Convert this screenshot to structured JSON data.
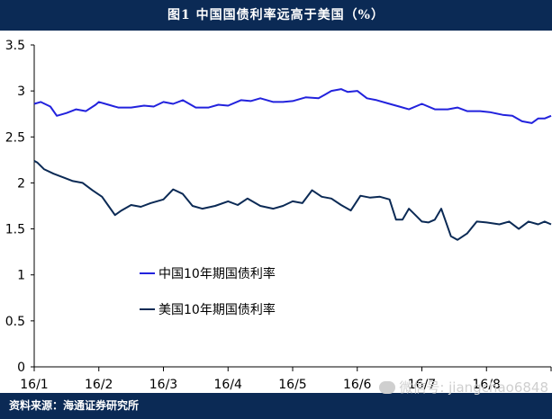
{
  "header": {
    "title": "图1   中国国债利率远高于美国（%）"
  },
  "footer": {
    "source": "资料来源：海通证券研究所"
  },
  "watermark": {
    "text": "微信号: jiangchao6848"
  },
  "colors": {
    "china": "#2222dd",
    "us": "#0b2a55",
    "axis": "#000000",
    "header_bg": "#0b2a55"
  },
  "chart_data": {
    "type": "line",
    "ylim": [
      0,
      3.5
    ],
    "y_ticks": [
      "0",
      "0.5",
      "1",
      "1.5",
      "2",
      "2.5",
      "3",
      "3.5"
    ],
    "x_ticks": [
      "16/1",
      "16/2",
      "16/3",
      "16/4",
      "16/5",
      "16/6",
      "16/7",
      "16/8"
    ],
    "legend_placement": "center-left",
    "series": [
      {
        "name": "中国10年期国债利率",
        "x": [
          0,
          0.1,
          0.25,
          0.35,
          0.5,
          0.65,
          0.8,
          0.95,
          1.0,
          1.15,
          1.3,
          1.5,
          1.7,
          1.85,
          2.0,
          2.15,
          2.3,
          2.5,
          2.7,
          2.85,
          3.0,
          3.2,
          3.35,
          3.5,
          3.7,
          3.85,
          4.0,
          4.2,
          4.4,
          4.5,
          4.6,
          4.75,
          4.85,
          5.0,
          5.15,
          5.3,
          5.5,
          5.65,
          5.8,
          6.0,
          6.2,
          6.4,
          6.55,
          6.7,
          6.9,
          7.05,
          7.25,
          7.4,
          7.55,
          7.7,
          7.8,
          7.9,
          8.0
        ],
        "values": [
          2.86,
          2.88,
          2.83,
          2.73,
          2.76,
          2.8,
          2.78,
          2.85,
          2.88,
          2.85,
          2.82,
          2.82,
          2.84,
          2.83,
          2.88,
          2.86,
          2.9,
          2.82,
          2.82,
          2.85,
          2.84,
          2.9,
          2.89,
          2.92,
          2.88,
          2.88,
          2.89,
          2.93,
          2.92,
          2.96,
          3.0,
          3.02,
          2.99,
          3.0,
          2.92,
          2.9,
          2.86,
          2.83,
          2.8,
          2.86,
          2.8,
          2.8,
          2.82,
          2.78,
          2.78,
          2.77,
          2.74,
          2.73,
          2.67,
          2.65,
          2.7,
          2.7,
          2.73
        ]
      },
      {
        "name": "美国10年期国债利率",
        "x": [
          0,
          0.05,
          0.15,
          0.3,
          0.45,
          0.6,
          0.75,
          0.9,
          1.05,
          1.15,
          1.25,
          1.35,
          1.5,
          1.65,
          1.8,
          2.0,
          2.15,
          2.3,
          2.45,
          2.6,
          2.8,
          3.0,
          3.15,
          3.3,
          3.5,
          3.7,
          3.85,
          4.0,
          4.15,
          4.3,
          4.45,
          4.6,
          4.75,
          4.9,
          5.05,
          5.2,
          5.35,
          5.5,
          5.6,
          5.7,
          5.8,
          5.9,
          6.0,
          6.1,
          6.2,
          6.3,
          6.45,
          6.55,
          6.7,
          6.85,
          7.0,
          7.2,
          7.35,
          7.5,
          7.65,
          7.8,
          7.9,
          8.0
        ],
        "values": [
          2.24,
          2.22,
          2.15,
          2.1,
          2.06,
          2.02,
          2.0,
          1.92,
          1.85,
          1.75,
          1.65,
          1.7,
          1.76,
          1.74,
          1.78,
          1.82,
          1.93,
          1.88,
          1.75,
          1.72,
          1.75,
          1.8,
          1.76,
          1.83,
          1.75,
          1.72,
          1.75,
          1.8,
          1.78,
          1.92,
          1.85,
          1.83,
          1.76,
          1.7,
          1.86,
          1.84,
          1.85,
          1.82,
          1.6,
          1.6,
          1.72,
          1.65,
          1.58,
          1.57,
          1.6,
          1.72,
          1.42,
          1.38,
          1.45,
          1.58,
          1.57,
          1.55,
          1.58,
          1.5,
          1.58,
          1.55,
          1.58,
          1.55
        ]
      }
    ]
  }
}
